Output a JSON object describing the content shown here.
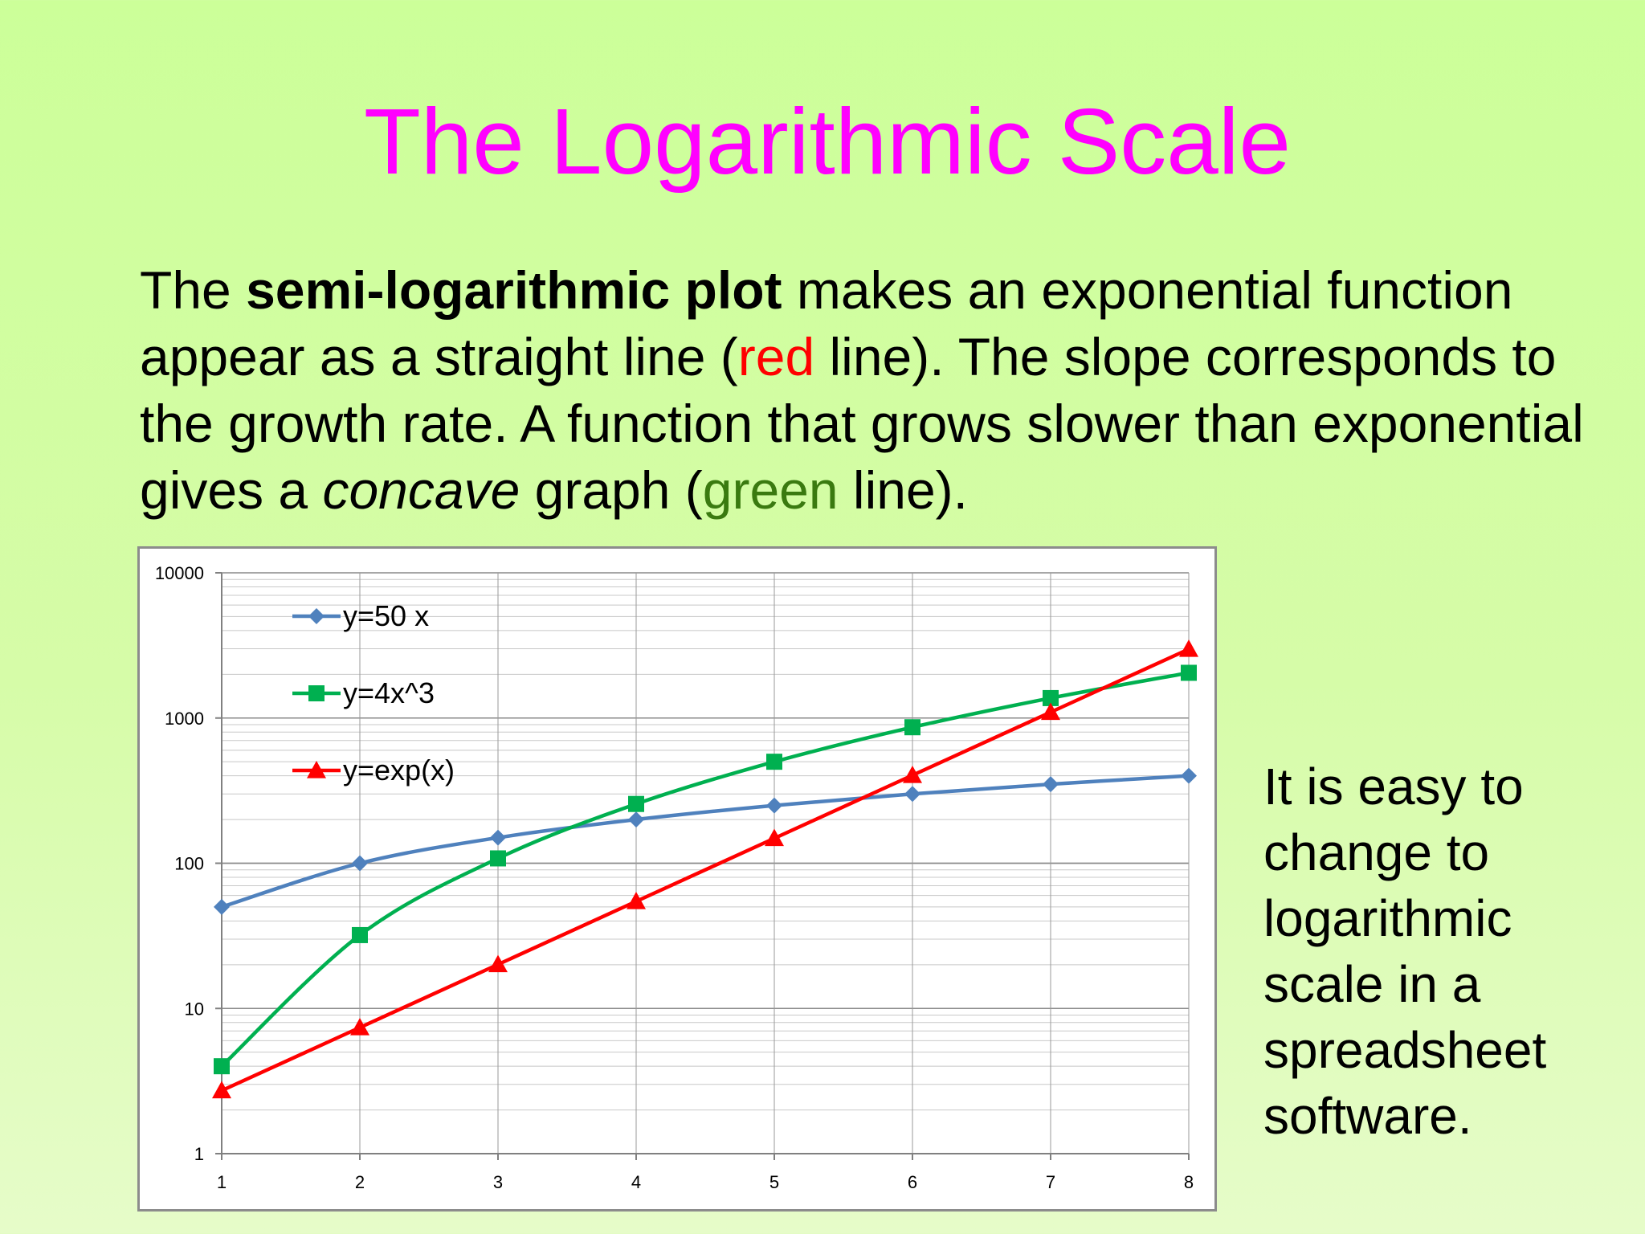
{
  "slide": {
    "title": "The Logarithmic Scale",
    "intro": {
      "part1": "The ",
      "bold": "semi-logarithmic plot",
      "part2": " makes an exponential function appear as a straight line (",
      "red_word": "red",
      "part3": " line). The slope corresponds to the growth rate. A function that grows slower than exponential gives a ",
      "italic": "concave",
      "part4": " graph (",
      "green_word": "green",
      "part5": " line)."
    },
    "side_note": "It is easy to change to logarithmic scale in a spreadsheet software."
  },
  "chart_data": {
    "type": "line",
    "y_scale": "log",
    "ylim": [
      1,
      10000
    ],
    "xlim": [
      1,
      8
    ],
    "x": [
      1,
      2,
      3,
      4,
      5,
      6,
      7,
      8
    ],
    "x_tick_labels": [
      "1",
      "2",
      "3",
      "4",
      "5",
      "6",
      "7",
      "8"
    ],
    "y_tick_labels": [
      "1",
      "10",
      "100",
      "1000",
      "10000"
    ],
    "grid": true,
    "legend_position": "top-left",
    "series": [
      {
        "name": "y=50 x",
        "color": "#4f81bd",
        "marker": "diamond",
        "values": [
          50,
          100,
          150,
          200,
          250,
          300,
          350,
          400
        ]
      },
      {
        "name": "y=4x^3",
        "color": "#00b050",
        "marker": "square",
        "values": [
          4,
          32,
          108,
          256,
          500,
          864,
          1372,
          2048
        ]
      },
      {
        "name": "y=exp(x)",
        "color": "#ff0000",
        "marker": "triangle",
        "values": [
          2.718,
          7.389,
          20.09,
          54.6,
          148.4,
          403.4,
          1096.6,
          2981
        ]
      }
    ]
  }
}
